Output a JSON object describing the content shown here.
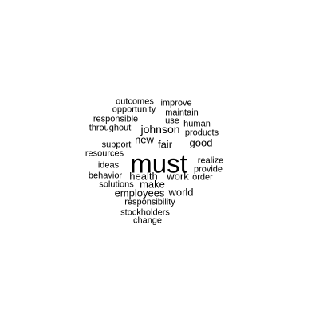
{
  "word_cloud": {
    "text_color": "#000000",
    "background": "#ffffff",
    "words": [
      {
        "text": "must",
        "weight": 10
      },
      {
        "text": "johnson",
        "weight": 4
      },
      {
        "text": "new",
        "weight": 3.5
      },
      {
        "text": "fair",
        "weight": 3.5
      },
      {
        "text": "health",
        "weight": 3.5
      },
      {
        "text": "work",
        "weight": 3.5
      },
      {
        "text": "employees",
        "weight": 3.5
      },
      {
        "text": "world",
        "weight": 3.5
      },
      {
        "text": "make",
        "weight": 3.5
      },
      {
        "text": "good",
        "weight": 3.5
      },
      {
        "text": "outcomes",
        "weight": 2
      },
      {
        "text": "improve",
        "weight": 2
      },
      {
        "text": "opportunity",
        "weight": 2
      },
      {
        "text": "maintain",
        "weight": 2
      },
      {
        "text": "responsible",
        "weight": 2
      },
      {
        "text": "use",
        "weight": 2
      },
      {
        "text": "throughout",
        "weight": 2
      },
      {
        "text": "human",
        "weight": 2
      },
      {
        "text": "products",
        "weight": 2
      },
      {
        "text": "support",
        "weight": 2
      },
      {
        "text": "resources",
        "weight": 2
      },
      {
        "text": "realize",
        "weight": 2
      },
      {
        "text": "ideas",
        "weight": 2
      },
      {
        "text": "provide",
        "weight": 2
      },
      {
        "text": "behavior",
        "weight": 2
      },
      {
        "text": "order",
        "weight": 2
      },
      {
        "text": "solutions",
        "weight": 2
      },
      {
        "text": "responsibility",
        "weight": 2
      },
      {
        "text": "stockholders",
        "weight": 2
      },
      {
        "text": "change",
        "weight": 2
      }
    ]
  }
}
